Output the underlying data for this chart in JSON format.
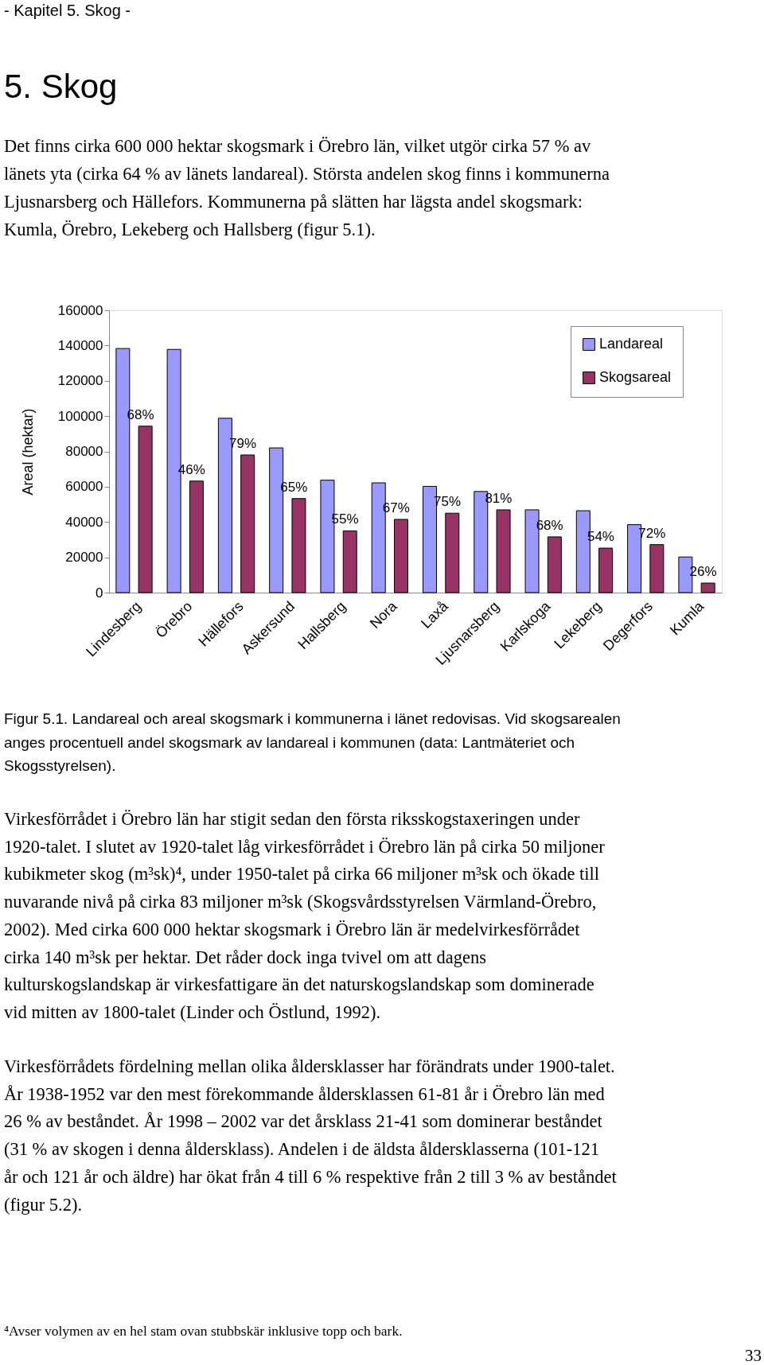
{
  "chart_data": {
    "type": "bar",
    "ylabel": "Areal (hektar)",
    "categories": [
      "Lindesberg",
      "Örebro",
      "Hällefors",
      "Askersund",
      "Hallsberg",
      "Nora",
      "Laxå",
      "Ljusnarsberg",
      "Karlskoga",
      "Lekeberg",
      "Degerfors",
      "Kumla"
    ],
    "series": [
      {
        "name": "Landareal",
        "color": "#9999ff",
        "values": [
          138300,
          137800,
          98800,
          82000,
          63700,
          62200,
          60200,
          57300,
          46900,
          46400,
          38500,
          20200
        ]
      },
      {
        "name": "Skogsareal",
        "color": "#993366",
        "values": [
          94300,
          63200,
          78000,
          53300,
          35000,
          41500,
          45000,
          46900,
          31600,
          25200,
          27200,
          5400
        ]
      }
    ],
    "ylim": [
      0,
      160000
    ],
    "yticks": [
      0,
      20000,
      40000,
      60000,
      80000,
      100000,
      120000,
      140000,
      160000
    ],
    "grid": false,
    "legend": "top right",
    "annotations": [
      "- Kapitel 5. Skog -",
      "5. Skog",
      "Det finns cirka 600 000 hektar skogsmark i Örebro län, vilket utgör cirka 57 % av\nlänets yta (cirka 64 % av länets landareal). Största andelen skog finns i kommunerna\nLjusnarsberg och Hällefors. Kommunerna på slätten har lägsta andel skogsmark:\nKumla, Örebro, Lekeberg och Hallsberg (figur 5.1).",
      "Figur 5.1. Landareal och areal skogsmark i kommunerna i länet redovisas. Vid skogsarealen\nanges procentuell andel skogsmark av landareal i kommunen (data: Lantmäteriet och\nSkogsstyrelsen).",
      "Virkesförrådet i Örebro län har stigit sedan den första riksskogstaxeringen under\n1920-talet. I slutet av 1920-talet låg virkesförrådet i Örebro län på cirka 50 miljoner\nkubikmeter skog (m³sk)⁴, under 1950-talet på cirka 66 miljoner m³sk och ökade till\nnuvarande nivå på cirka 83 miljoner m³sk (Skogsvårdsstyrelsen Värmland-Örebro,\n2002). Med cirka 600 000 hektar skogsmark i Örebro län är medelvirkesförrådet\ncirka 140 m³sk per hektar. Det råder dock inga tvivel om att dagens\nkulturskogslandskap är virkesfattigare än det naturskogslandskap som dominerade\nvid mitten av 1800-talet (Linder och Östlund, 1992).",
      "Virkesförrådets fördelning mellan olika åldersklasser har förändrats under 1900-talet.\nÅr 1938-1952 var den mest förekommande åldersklassen 61-81 år i Örebro län med\n26 % av beståndet. År 1998 – 2002 var det årsklass 21-41 som dominerar beståndet\n(31 % av skogen i denna åldersklass). Andelen i de äldsta åldersklasserna (101-121\når och 121 år och äldre) har ökat från 4 till 6 % respektive från 2 till 3 % av beståndet\n(figur 5.2).",
      "⁴Avser volymen av en hel stam ovan stubbskär inklusive topp och bark.",
      "33",
      {
        "text": "68%",
        "x": "Lindesberg",
        "y": 94300
      },
      {
        "text": "46%",
        "x": "Örebro",
        "y": 63200
      },
      {
        "text": "79%",
        "x": "Hällefors",
        "y": 78000
      },
      {
        "text": "65%",
        "x": "Askersund",
        "y": 53300
      },
      {
        "text": "55%",
        "x": "Hallsberg",
        "y": 35000
      },
      {
        "text": "67%",
        "x": "Nora",
        "y": 41500
      },
      {
        "text": "75%",
        "x": "Laxå",
        "y": 45000
      },
      {
        "text": "81%",
        "x": "Ljusnarsberg",
        "y": 46900
      },
      {
        "text": "68%",
        "x": "Karlskoga",
        "y": 31600
      },
      {
        "text": "54%",
        "x": "Lekeberg",
        "y": 25200
      },
      {
        "text": "72%",
        "x": "Degerfors",
        "y": 27200
      },
      {
        "text": "26%",
        "x": "Kumla",
        "y": 5400
      }
    ]
  }
}
